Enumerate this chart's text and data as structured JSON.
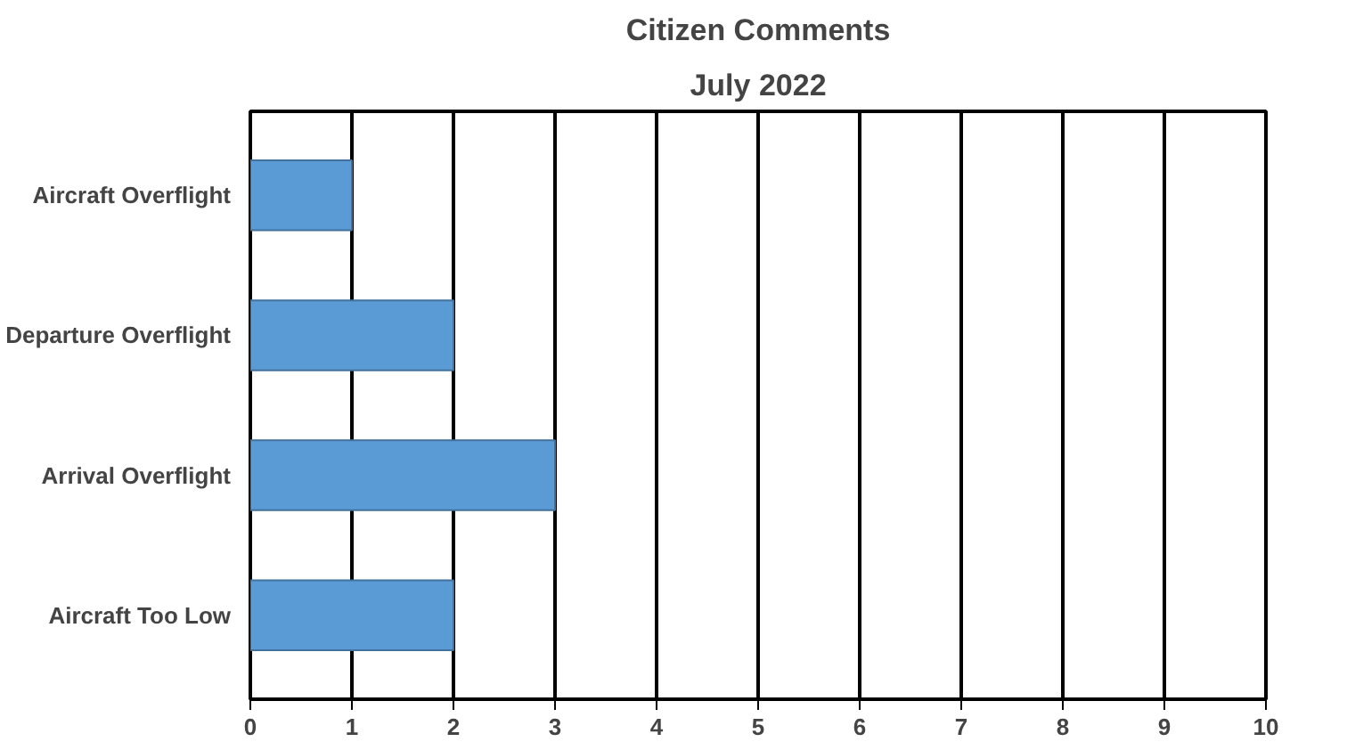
{
  "chart_data": {
    "type": "bar",
    "orientation": "horizontal",
    "title": "Citizen Comments",
    "subtitle": "July 2022",
    "categories": [
      "Aircraft Overflight",
      "Departure Overflight",
      "Arrival Overflight",
      "Aircraft Too Low"
    ],
    "values": [
      1,
      2,
      3,
      2
    ],
    "color": "#5b9bd5",
    "xlim": [
      0,
      10
    ],
    "xticks": [
      0,
      1,
      2,
      3,
      4,
      5,
      6,
      7,
      8,
      9,
      10
    ],
    "grid": "x"
  }
}
